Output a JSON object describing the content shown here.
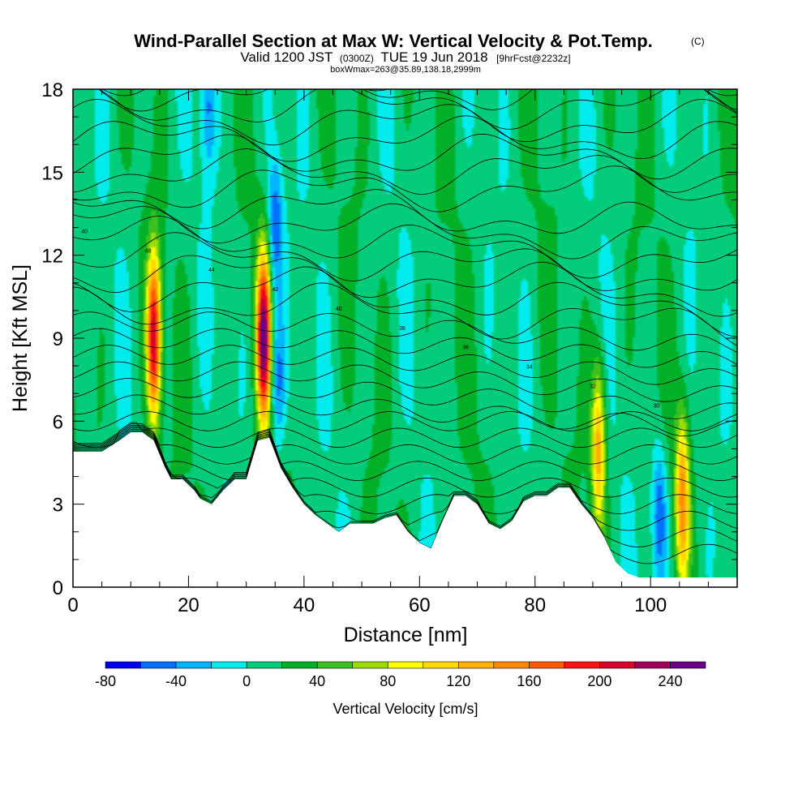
{
  "chart_data": {
    "type": "heatmap",
    "title_parts": {
      "main": "Wind-Parallel Section at Max W: Vertical Velocity & Pot.Temp.",
      "main_suffix": "(C)",
      "valid_prefix": "Valid 1200 JST",
      "valid_utc": "(0300Z)",
      "valid_date": "TUE 19 Jun 2018",
      "forecast": "[9hrFcst@2232z]",
      "box": "boxWmax=263@35.89,138.18,2999m"
    },
    "xlabel": "Distance [nm]",
    "ylabel": "Height [Kft MSL]",
    "xlim": [
      0,
      115
    ],
    "ylim": [
      0,
      18
    ],
    "x_ticks": [
      0,
      20,
      40,
      60,
      80,
      100
    ],
    "y_ticks": [
      0,
      3,
      6,
      9,
      12,
      15,
      18
    ],
    "colorbar": {
      "title": "Vertical Velocity [cm/s]",
      "min": -80,
      "max": 260,
      "step": 20,
      "tick_values": [
        -80,
        -40,
        0,
        40,
        80,
        120,
        160,
        200,
        240
      ],
      "colors": [
        "#0000f0",
        "#0070ff",
        "#00b4ff",
        "#00ecec",
        "#00cc7a",
        "#00b026",
        "#3cc01e",
        "#9adc00",
        "#ffff00",
        "#ffd800",
        "#ffb000",
        "#ff8a00",
        "#ff5a00",
        "#ff1414",
        "#d8002a",
        "#a0005a",
        "#6a0082"
      ]
    },
    "terrain_height_profile": {
      "x": [
        0,
        5,
        8,
        10,
        12,
        14,
        16,
        17,
        19,
        21,
        22,
        24,
        26,
        28,
        30,
        32,
        34,
        36,
        38,
        40,
        42,
        44,
        46,
        48,
        50,
        52,
        54,
        56,
        58,
        60,
        62,
        64,
        66,
        68,
        70,
        72,
        74,
        76,
        78,
        80,
        82,
        84,
        86,
        88,
        90,
        92,
        94,
        96,
        98,
        100,
        102,
        104,
        106,
        108,
        110,
        112,
        115
      ],
      "y": [
        4.9,
        4.9,
        5.3,
        5.6,
        5.6,
        5.3,
        4.3,
        3.9,
        3.9,
        3.5,
        3.2,
        3.0,
        3.5,
        3.9,
        3.9,
        5.3,
        5.4,
        4.3,
        3.6,
        3.0,
        2.6,
        2.3,
        2.0,
        2.3,
        2.3,
        2.3,
        2.5,
        2.6,
        2.0,
        1.6,
        1.4,
        2.4,
        3.3,
        3.3,
        3.0,
        2.3,
        2.1,
        2.4,
        3.1,
        3.3,
        3.3,
        3.6,
        3.6,
        3.0,
        2.5,
        1.8,
        0.9,
        0.5,
        0.35,
        0.35,
        0.35,
        0.35,
        0.35,
        0.35,
        0.35,
        0.35,
        0.35
      ]
    },
    "updraft_maxima": [
      {
        "x": 14,
        "y": 9.0,
        "w": 200
      },
      {
        "x": 33,
        "y": 9.0,
        "w": 235
      },
      {
        "x": 91,
        "y": 5.0,
        "w": 120
      },
      {
        "x": 105.5,
        "y": 3.2,
        "w": 130
      }
    ],
    "downdraft_minima": [
      {
        "x": 23.5,
        "y": 17.5,
        "w": -60
      },
      {
        "x": 35.0,
        "y": 13.0,
        "w": -70
      },
      {
        "x": 35.5,
        "y": 7.5,
        "w": -60
      },
      {
        "x": 101.5,
        "y": 2.6,
        "w": -70
      }
    ],
    "theta_contour_labels": [
      "40",
      "48",
      "44",
      "42",
      "40",
      "38",
      "36",
      "34",
      "32",
      "30"
    ]
  }
}
